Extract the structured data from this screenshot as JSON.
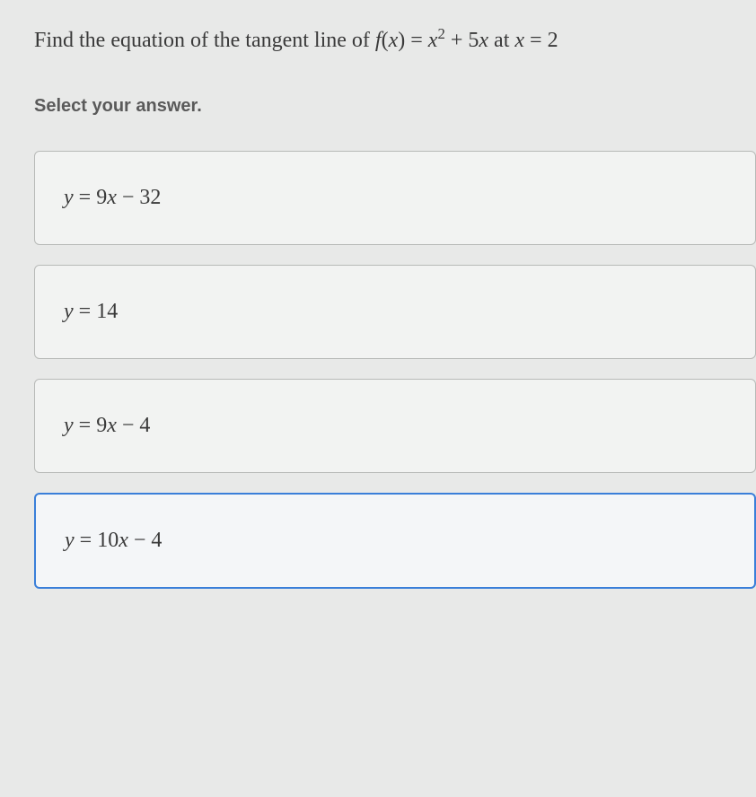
{
  "question": {
    "prefix": "Find the equation of the tangent line of ",
    "func_lhs": "f",
    "func_arg": "x",
    "eq": " = ",
    "rhs_var": "x",
    "rhs_exp": "2",
    "rhs_plus": " + 5",
    "rhs_var2": "x",
    "at": " at ",
    "at_var": "x",
    "at_eq": " = ",
    "at_val": "2"
  },
  "prompt": "Select your answer.",
  "options": [
    {
      "y": "y",
      "eq": " = 9",
      "var": "x",
      "tail": " − 32",
      "selected": false
    },
    {
      "y": "y",
      "eq": " = 14",
      "var": "",
      "tail": "",
      "selected": false
    },
    {
      "y": "y",
      "eq": " = 9",
      "var": "x",
      "tail": " − 4",
      "selected": false
    },
    {
      "y": "y",
      "eq": " = 10",
      "var": "x",
      "tail": " − 4",
      "selected": true
    }
  ],
  "colors": {
    "page_bg": "#e8e9e8",
    "option_bg": "#f2f3f2",
    "option_border": "#b8bab8",
    "selected_border": "#3a7fd9",
    "text": "#3a3a3a",
    "prompt_text": "#5a5a5a"
  },
  "typography": {
    "question_fontsize": 24,
    "prompt_fontsize": 20,
    "option_fontsize": 24
  }
}
